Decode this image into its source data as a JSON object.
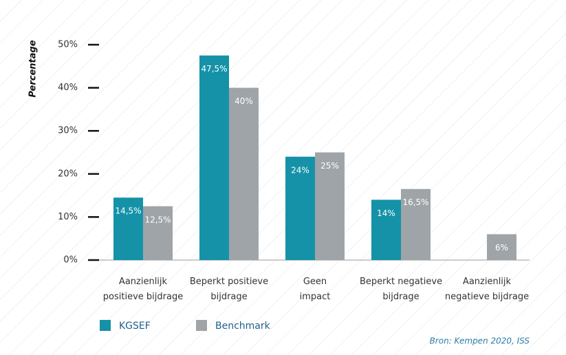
{
  "chart_data": {
    "type": "bar",
    "y_label": "Percentage",
    "categories": [
      "Aanzienlijk\npositieve bijdrage",
      "Beperkt positieve\nbijdrage",
      "Geen\nimpact",
      "Beperkt negatieve\nbijdrage",
      "Aanzienlijk\nnegatieve bijdrage"
    ],
    "series": [
      {
        "name": "KGSEF",
        "color": "#1592a8",
        "values": [
          14.5,
          47.5,
          24,
          14,
          null
        ],
        "value_labels": [
          "14,5%",
          "47,5%",
          "24%",
          "14%",
          null
        ]
      },
      {
        "name": "Benchmark",
        "color": "#9fa4a8",
        "values": [
          12.5,
          40,
          25,
          16.5,
          6
        ],
        "value_labels": [
          "12,5%",
          "40%",
          "25%",
          "16,5%",
          "6%"
        ]
      }
    ],
    "ylim": [
      0,
      50
    ],
    "yticks": [
      {
        "value": 0,
        "label": "0%"
      },
      {
        "value": 10,
        "label": "10%"
      },
      {
        "value": 20,
        "label": "20%"
      },
      {
        "value": 30,
        "label": "30%"
      },
      {
        "value": 40,
        "label": "40%"
      },
      {
        "value": 50,
        "label": "50%"
      }
    ],
    "source": "Bron: Kempen 2020, ISS"
  }
}
